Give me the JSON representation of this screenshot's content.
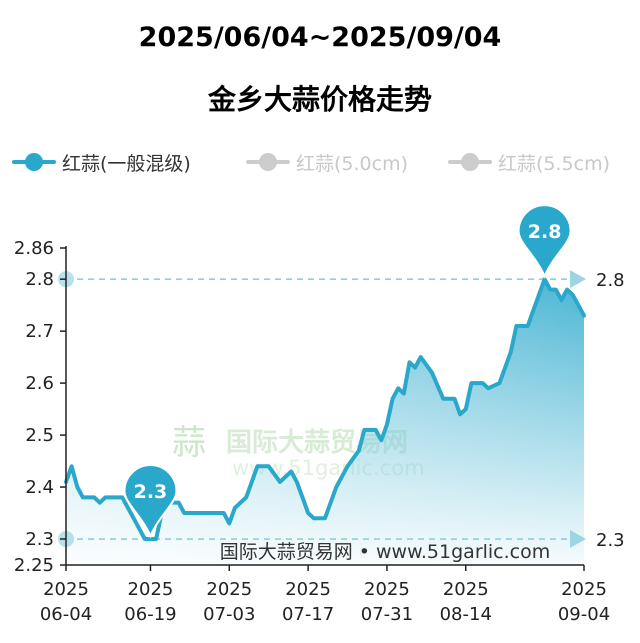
{
  "title_line1": "2025/06/04~2025/09/04",
  "title_line2": "金乡大蒜价格走势",
  "legend": [
    {
      "label": "红蒜(一般混级)",
      "active": true
    },
    {
      "label": "红蒜(5.0cm)",
      "active": false
    },
    {
      "label": "红蒜(5.5cm)",
      "active": false
    }
  ],
  "colors": {
    "series": "#29a8cc",
    "reference_line": "#8ccfe0",
    "inactive": "#cccccc"
  },
  "watermark_text": "国际大蒜贸易网",
  "watermark_url": "www.51garlic.com",
  "source_text": "国际大蒜贸易网 • www.51garlic.com",
  "chart_data": {
    "type": "area",
    "title": "金乡大蒜价格走势",
    "subtitle": "2025/06/04~2025/09/04",
    "xlabel": "",
    "ylabel": "",
    "ylim": [
      2.25,
      2.86
    ],
    "y_ticks": [
      "2.86",
      "2.8",
      "2.7",
      "2.6",
      "2.5",
      "2.4",
      "2.3",
      "2.25"
    ],
    "x_tick_labels": [
      [
        "2025",
        "06-04"
      ],
      [
        "2025",
        "06-19"
      ],
      [
        "2025",
        "07-03"
      ],
      [
        "2025",
        "07-17"
      ],
      [
        "2025",
        "07-31"
      ],
      [
        "2025",
        "08-14"
      ],
      [
        "2025",
        "09-04"
      ]
    ],
    "x_ticks_dates": [
      "2025-06-04",
      "2025-06-19",
      "2025-07-03",
      "2025-07-17",
      "2025-07-31",
      "2025-08-14",
      "2025-09-04"
    ],
    "legend_position": "top-left",
    "grid": false,
    "series": [
      {
        "name": "红蒜(一般混级)",
        "points": [
          [
            "2025-06-04",
            2.41
          ],
          [
            "2025-06-05",
            2.44
          ],
          [
            "2025-06-06",
            2.4
          ],
          [
            "2025-06-07",
            2.38
          ],
          [
            "2025-06-09",
            2.38
          ],
          [
            "2025-06-10",
            2.37
          ],
          [
            "2025-06-11",
            2.38
          ],
          [
            "2025-06-14",
            2.38
          ],
          [
            "2025-06-15",
            2.36
          ],
          [
            "2025-06-16",
            2.34
          ],
          [
            "2025-06-18",
            2.3
          ],
          [
            "2025-06-20",
            2.3
          ],
          [
            "2025-06-21",
            2.35
          ],
          [
            "2025-06-22",
            2.37
          ],
          [
            "2025-06-24",
            2.37
          ],
          [
            "2025-06-25",
            2.35
          ],
          [
            "2025-07-02",
            2.35
          ],
          [
            "2025-07-03",
            2.33
          ],
          [
            "2025-07-04",
            2.36
          ],
          [
            "2025-07-06",
            2.38
          ],
          [
            "2025-07-08",
            2.44
          ],
          [
            "2025-07-10",
            2.44
          ],
          [
            "2025-07-12",
            2.41
          ],
          [
            "2025-07-14",
            2.43
          ],
          [
            "2025-07-15",
            2.41
          ],
          [
            "2025-07-16",
            2.38
          ],
          [
            "2025-07-17",
            2.35
          ],
          [
            "2025-07-18",
            2.34
          ],
          [
            "2025-07-20",
            2.34
          ],
          [
            "2025-07-22",
            2.4
          ],
          [
            "2025-07-24",
            2.44
          ],
          [
            "2025-07-26",
            2.47
          ],
          [
            "2025-07-27",
            2.51
          ],
          [
            "2025-07-29",
            2.51
          ],
          [
            "2025-07-30",
            2.49
          ],
          [
            "2025-07-31",
            2.52
          ],
          [
            "2025-08-01",
            2.57
          ],
          [
            "2025-08-02",
            2.59
          ],
          [
            "2025-08-03",
            2.58
          ],
          [
            "2025-08-04",
            2.64
          ],
          [
            "2025-08-05",
            2.63
          ],
          [
            "2025-08-06",
            2.65
          ],
          [
            "2025-08-08",
            2.62
          ],
          [
            "2025-08-10",
            2.57
          ],
          [
            "2025-08-12",
            2.57
          ],
          [
            "2025-08-13",
            2.54
          ],
          [
            "2025-08-14",
            2.55
          ],
          [
            "2025-08-15",
            2.6
          ],
          [
            "2025-08-17",
            2.6
          ],
          [
            "2025-08-18",
            2.59
          ],
          [
            "2025-08-20",
            2.6
          ],
          [
            "2025-08-22",
            2.66
          ],
          [
            "2025-08-23",
            2.71
          ],
          [
            "2025-08-25",
            2.71
          ],
          [
            "2025-08-26",
            2.74
          ],
          [
            "2025-08-28",
            2.8
          ],
          [
            "2025-08-29",
            2.78
          ],
          [
            "2025-08-30",
            2.78
          ],
          [
            "2025-08-31",
            2.76
          ],
          [
            "2025-09-01",
            2.78
          ],
          [
            "2025-09-02",
            2.77
          ],
          [
            "2025-09-03",
            2.75
          ],
          [
            "2025-09-04",
            2.73
          ]
        ]
      }
    ],
    "annotations": [
      {
        "type": "min",
        "label": "2.3",
        "value": 2.3,
        "date": "2025-06-19"
      },
      {
        "type": "max",
        "label": "2.8",
        "value": 2.8,
        "date": "2025-08-28"
      }
    ],
    "reference_lines": [
      {
        "value": 2.8,
        "label": "2.8"
      },
      {
        "value": 2.3,
        "label": "2.3"
      }
    ]
  }
}
